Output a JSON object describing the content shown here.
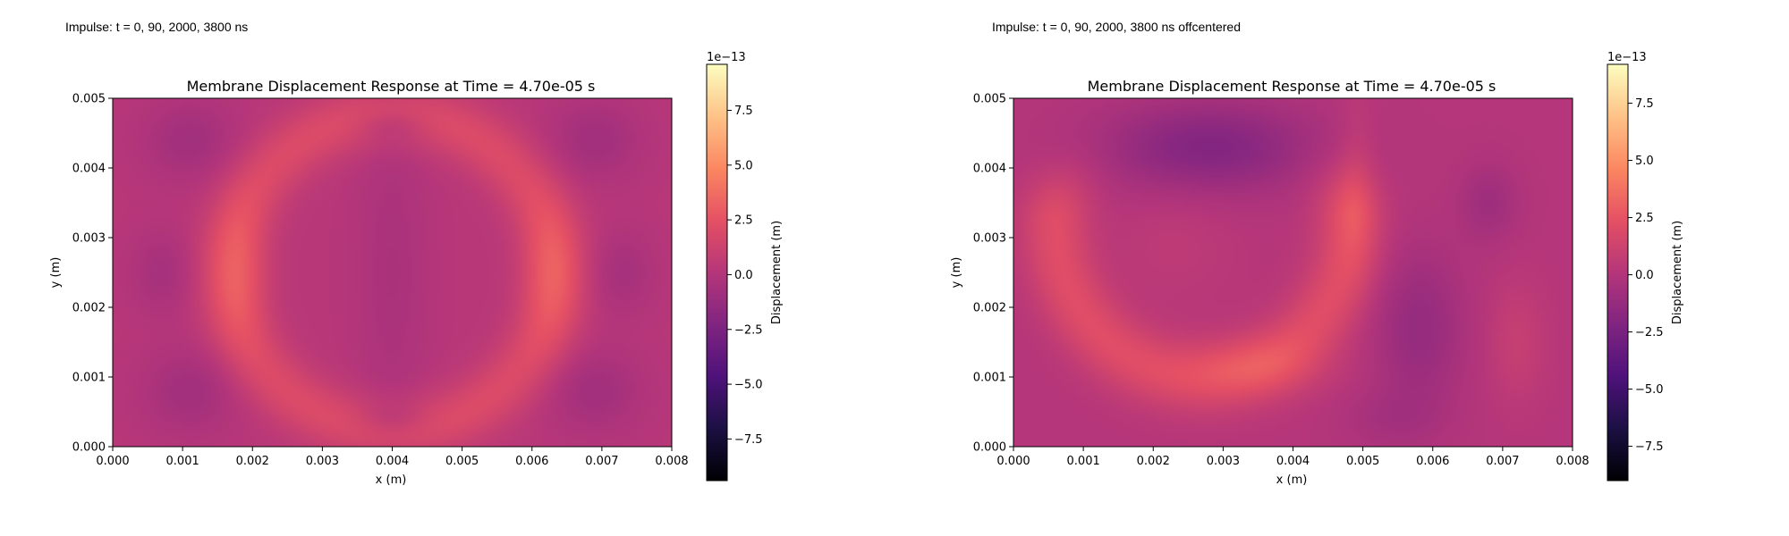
{
  "captions": {
    "left": "Impulse: t = 0, 90, 2000, 3800 ns",
    "right": "Impulse: t = 0, 90, 2000, 3800 ns offcentered"
  },
  "chart_data": [
    {
      "type": "heatmap",
      "title": "Membrane Displacement Response at Time = 4.70e-05 s",
      "xlabel": "x (m)",
      "ylabel": "y (m)",
      "xlim": [
        0,
        0.008
      ],
      "ylim": [
        0,
        0.005
      ],
      "x_ticks": [
        "0.000",
        "0.001",
        "0.002",
        "0.003",
        "0.004",
        "0.005",
        "0.006",
        "0.007",
        "0.008"
      ],
      "y_ticks": [
        "0.000",
        "0.001",
        "0.002",
        "0.003",
        "0.004",
        "0.005"
      ],
      "colorbar": {
        "label": "Displacement (m)",
        "scale_label": "1e−13",
        "range": [
          -9.4,
          9.6
        ],
        "ticks": [
          "−7.5",
          "−5.0",
          "−2.5",
          "0.0",
          "2.5",
          "5.0",
          "7.5"
        ],
        "tick_values": [
          -7.5,
          -5.0,
          -2.5,
          0.0,
          2.5,
          5.0,
          7.5
        ],
        "colormap": "magma"
      },
      "field": {
        "base": 0.2,
        "features": [
          {
            "kind": "ellipse_ring",
            "cx": 0.004,
            "cy": 0.0025,
            "rx": 0.0023,
            "ry": 0.00225,
            "width": 0.00032,
            "amp": 1.8
          },
          {
            "kind": "blob",
            "x": 0.0018,
            "y": 0.0025,
            "sx": 0.0003,
            "sy": 0.0007,
            "amp": 1.3
          },
          {
            "kind": "blob",
            "x": 0.0063,
            "y": 0.0025,
            "sx": 0.0003,
            "sy": 0.0007,
            "amp": 1.3
          },
          {
            "kind": "blob",
            "x": 0.004,
            "y": 0.0025,
            "sx": 0.00035,
            "sy": 0.0018,
            "amp": -0.6
          },
          {
            "kind": "blob",
            "x": 0.0011,
            "y": 0.0044,
            "sx": 0.00045,
            "sy": 0.0004,
            "amp": -1.0
          },
          {
            "kind": "blob",
            "x": 0.0069,
            "y": 0.0044,
            "sx": 0.00045,
            "sy": 0.0004,
            "amp": -1.0
          },
          {
            "kind": "blob",
            "x": 0.0011,
            "y": 0.0008,
            "sx": 0.00045,
            "sy": 0.0004,
            "amp": -1.0
          },
          {
            "kind": "blob",
            "x": 0.0069,
            "y": 0.0008,
            "sx": 0.00045,
            "sy": 0.0004,
            "amp": -1.0
          },
          {
            "kind": "blob",
            "x": 0.0007,
            "y": 0.0025,
            "sx": 0.0003,
            "sy": 0.0004,
            "amp": -0.8
          },
          {
            "kind": "blob",
            "x": 0.0073,
            "y": 0.0025,
            "sx": 0.0003,
            "sy": 0.0004,
            "amp": -0.8
          },
          {
            "kind": "blob",
            "x": 0.004,
            "y": 0.0046,
            "sx": 0.00035,
            "sy": 0.00015,
            "amp": -0.8
          },
          {
            "kind": "blob",
            "x": 0.004,
            "y": 0.0004,
            "sx": 0.00035,
            "sy": 0.00015,
            "amp": -0.8
          }
        ]
      }
    },
    {
      "type": "heatmap",
      "title": "Membrane Displacement Response at Time = 4.70e-05 s",
      "xlabel": "x (m)",
      "ylabel": "y (m)",
      "xlim": [
        0,
        0.008
      ],
      "ylim": [
        0,
        0.005
      ],
      "x_ticks": [
        "0.000",
        "0.001",
        "0.002",
        "0.003",
        "0.004",
        "0.005",
        "0.006",
        "0.007",
        "0.008"
      ],
      "y_ticks": [
        "0.000",
        "0.001",
        "0.002",
        "0.003",
        "0.004",
        "0.005"
      ],
      "colorbar": {
        "label": "Displacement (m)",
        "scale_label": "1e−13",
        "range": [
          -9.0,
          9.2
        ],
        "ticks": [
          "−7.5",
          "−5.0",
          "−2.5",
          "0.0",
          "2.5",
          "5.0",
          "7.5"
        ],
        "tick_values": [
          -7.5,
          -5.0,
          -2.5,
          0.0,
          2.5,
          5.0,
          7.5
        ],
        "colormap": "magma"
      },
      "field": {
        "base": 0.1,
        "features": [
          {
            "kind": "half_ring",
            "cx": 0.0027,
            "cy": 0.0032,
            "rx": 0.0021,
            "ry": 0.0022,
            "width": 0.00035,
            "amp": 2.0
          },
          {
            "kind": "blob",
            "x": 0.0035,
            "y": 0.00115,
            "sx": 0.0007,
            "sy": 0.0003,
            "amp": 1.0
          },
          {
            "kind": "blob",
            "x": 0.0049,
            "y": 0.0037,
            "sx": 0.0002,
            "sy": 0.0008,
            "amp": 1.0
          },
          {
            "kind": "blob",
            "x": 0.0028,
            "y": 0.0043,
            "sx": 0.0011,
            "sy": 0.00045,
            "amp": -2.2
          },
          {
            "kind": "blob",
            "x": 0.0058,
            "y": 0.0017,
            "sx": 0.00045,
            "sy": 0.0008,
            "amp": -1.4
          },
          {
            "kind": "blob",
            "x": 0.0068,
            "y": 0.0035,
            "sx": 0.0003,
            "sy": 0.0004,
            "amp": -1.0
          },
          {
            "kind": "blob",
            "x": 0.0072,
            "y": 0.0015,
            "sx": 0.0003,
            "sy": 0.0006,
            "amp": 0.8
          },
          {
            "kind": "blob",
            "x": 0.0054,
            "y": 0.0004,
            "sx": 0.0005,
            "sy": 0.0003,
            "amp": -0.6
          },
          {
            "kind": "blob",
            "x": 0.0023,
            "y": 0.0029,
            "sx": 0.0006,
            "sy": 0.0006,
            "amp": 0.4
          }
        ]
      }
    }
  ]
}
